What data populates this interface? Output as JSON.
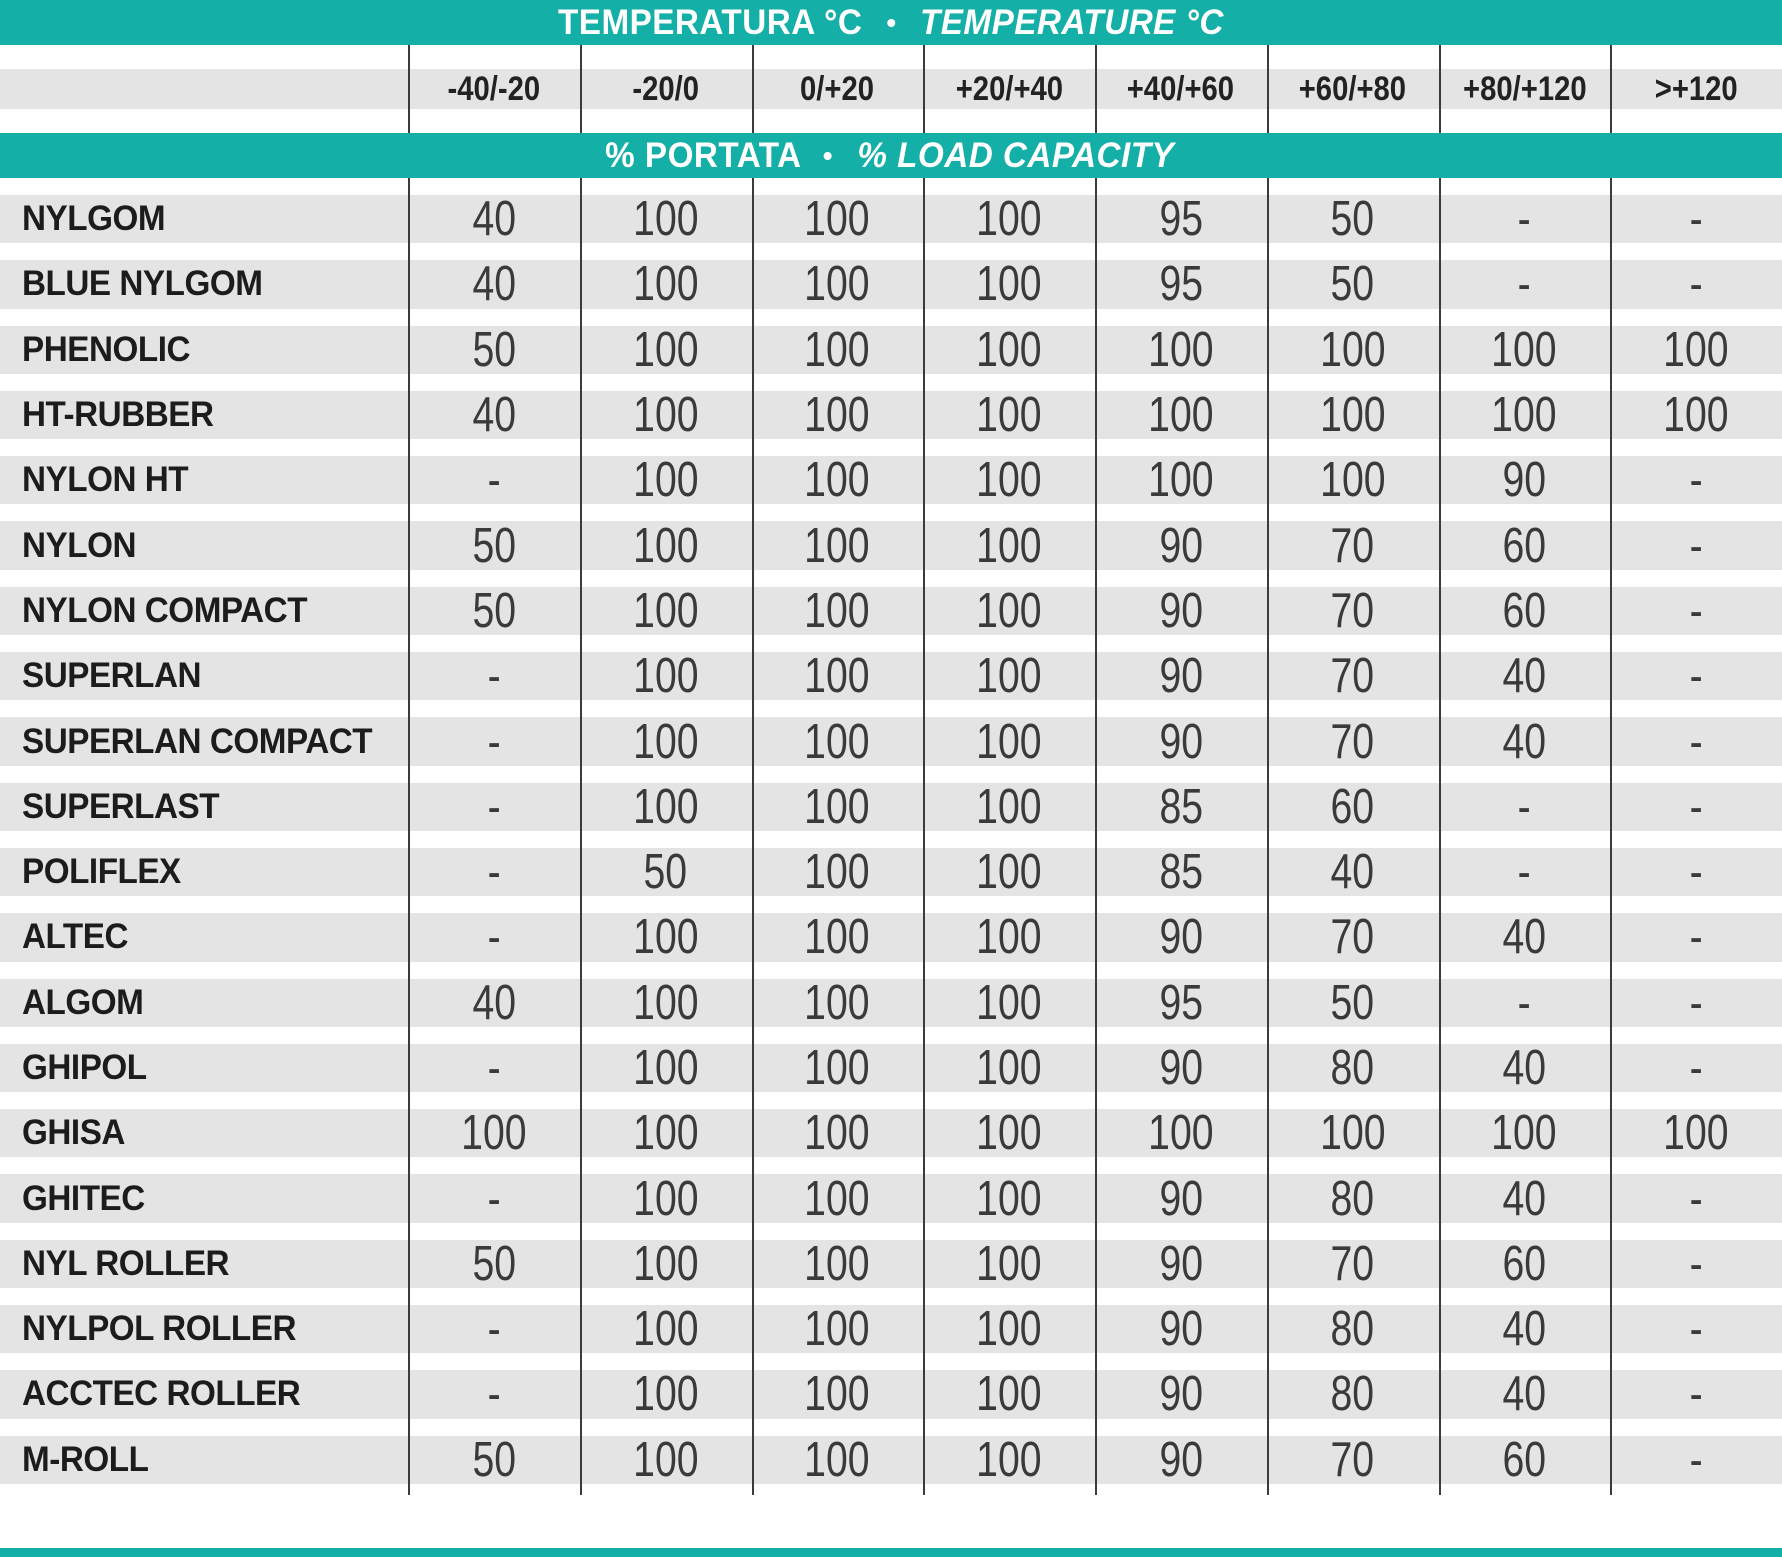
{
  "colors": {
    "teal": "#14AFA6",
    "stripe": "#E4E4E4",
    "line": "#3B3B3B"
  },
  "temperature_header": {
    "it": "TEMPERATURA °C",
    "bullet": "•",
    "en": "TEMPERATURE °C"
  },
  "capacity_header": {
    "it": "% PORTATA",
    "bullet": "•",
    "en": "% LOAD CAPACITY"
  },
  "temp_ranges": [
    "-40/-20",
    "-20/0",
    "0/+20",
    "+20/+40",
    "+40/+60",
    "+60/+80",
    "+80/+120",
    ">+120"
  ],
  "rows": [
    {
      "label": "NYLGOM",
      "values": [
        "40",
        "100",
        "100",
        "100",
        "95",
        "50",
        "-",
        "-"
      ]
    },
    {
      "label": "BLUE NYLGOM",
      "values": [
        "40",
        "100",
        "100",
        "100",
        "95",
        "50",
        "-",
        "-"
      ]
    },
    {
      "label": "PHENOLIC",
      "values": [
        "50",
        "100",
        "100",
        "100",
        "100",
        "100",
        "100",
        "100"
      ]
    },
    {
      "label": "HT-RUBBER",
      "values": [
        "40",
        "100",
        "100",
        "100",
        "100",
        "100",
        "100",
        "100"
      ]
    },
    {
      "label": "NYLON HT",
      "values": [
        "-",
        "100",
        "100",
        "100",
        "100",
        "100",
        "90",
        "-"
      ]
    },
    {
      "label": "NYLON",
      "values": [
        "50",
        "100",
        "100",
        "100",
        "90",
        "70",
        "60",
        "-"
      ]
    },
    {
      "label": "NYLON COMPACT",
      "values": [
        "50",
        "100",
        "100",
        "100",
        "90",
        "70",
        "60",
        "-"
      ]
    },
    {
      "label": "SUPERLAN",
      "values": [
        "-",
        "100",
        "100",
        "100",
        "90",
        "70",
        "40",
        "-"
      ]
    },
    {
      "label": "SUPERLAN COMPACT",
      "values": [
        "-",
        "100",
        "100",
        "100",
        "90",
        "70",
        "40",
        "-"
      ]
    },
    {
      "label": "SUPERLAST",
      "values": [
        "-",
        "100",
        "100",
        "100",
        "85",
        "60",
        "-",
        "-"
      ]
    },
    {
      "label": "POLIFLEX",
      "values": [
        "-",
        "50",
        "100",
        "100",
        "85",
        "40",
        "-",
        "-"
      ]
    },
    {
      "label": "ALTEC",
      "values": [
        "-",
        "100",
        "100",
        "100",
        "90",
        "70",
        "40",
        "-"
      ]
    },
    {
      "label": "ALGOM",
      "values": [
        "40",
        "100",
        "100",
        "100",
        "95",
        "50",
        "-",
        "-"
      ]
    },
    {
      "label": "GHIPOL",
      "values": [
        "-",
        "100",
        "100",
        "100",
        "90",
        "80",
        "40",
        "-"
      ]
    },
    {
      "label": "GHISA",
      "values": [
        "100",
        "100",
        "100",
        "100",
        "100",
        "100",
        "100",
        "100"
      ]
    },
    {
      "label": "GHITEC",
      "values": [
        "-",
        "100",
        "100",
        "100",
        "90",
        "80",
        "40",
        "-"
      ]
    },
    {
      "label": "NYL ROLLER",
      "values": [
        "50",
        "100",
        "100",
        "100",
        "90",
        "70",
        "60",
        "-"
      ]
    },
    {
      "label": "NYLPOL ROLLER",
      "values": [
        "-",
        "100",
        "100",
        "100",
        "90",
        "80",
        "40",
        "-"
      ]
    },
    {
      "label": "ACCTEC ROLLER",
      "values": [
        "-",
        "100",
        "100",
        "100",
        "90",
        "80",
        "40",
        "-"
      ]
    },
    {
      "label": "M-ROLL",
      "values": [
        "50",
        "100",
        "100",
        "100",
        "90",
        "70",
        "60",
        "-"
      ]
    }
  ]
}
